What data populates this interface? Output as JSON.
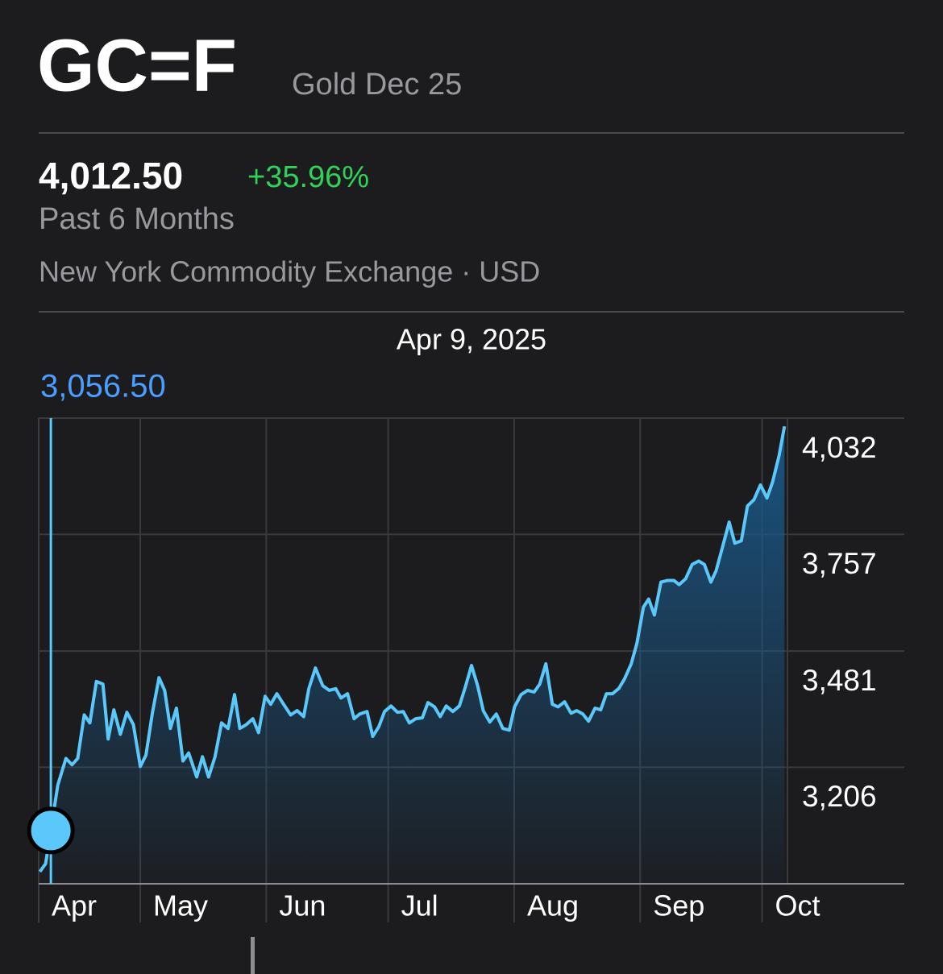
{
  "symbol": "GC=F",
  "name": "Gold Dec 25",
  "price": "4,012.50",
  "change": "+35.96%",
  "period": "Past 6 Months",
  "exchange": "New York Commodity Exchange · USD",
  "chart_data": {
    "type": "line",
    "x": [
      5.3,
      6.7,
      8,
      9.7,
      11.7,
      13.2,
      14.6,
      16.2,
      17.6,
      19.2,
      20.8,
      22.1,
      23.5,
      25.1,
      26.7,
      28.3,
      30.0,
      31.4,
      33.0,
      34.6,
      36.0,
      37.4,
      38.9,
      40.5,
      41.9,
      43.9,
      45.3,
      46.8,
      48.4,
      50.0,
      51.6,
      53.2,
      54.5,
      56.1,
      57.7,
      59.1,
      60.7,
      62.1,
      63.6,
      65.4,
      67.0,
      68.6,
      70.2,
      71.5,
      73.1,
      74.9,
      76.5,
      78.1,
      79.4,
      81.0,
      82.6,
      84.0,
      85.8,
      87.2,
      88.7,
      90.1,
      91.7,
      93.3,
      94.7,
      96.2,
      97.8,
      99.4,
      100.8,
      102.4,
      103.8,
      105.3,
      106.9,
      108.5,
      109.9,
      111.5,
      113.0,
      114.4,
      116.0,
      117.6,
      119.2,
      120.8,
      122.1,
      123.7,
      125.3,
      126.9,
      128.3,
      129.8,
      131.4,
      132.8,
      134.4,
      136.0,
      137.4,
      138.9,
      140.3,
      141.9,
      143.3,
      144.7,
      146.2,
      147.8,
      149.2,
      150.8,
      152.2,
      153.8,
      155.1,
      156.5,
      158.1,
      159.7,
      161.3,
      162.6,
      164.2,
      165.8,
      167.4,
      168.8,
      170.4,
      171.7,
      173.3,
      174.9,
      176.3,
      177.9,
      179.4,
      181.0,
      182.6,
      184.2,
      185.6,
      187.2,
      188.5
    ],
    "series": [
      {
        "color": "#5ac8fa",
        "values": [
          2959,
          2978,
          3056.5,
          3164,
          3227,
          3212,
          3227,
          3330,
          3311,
          3409,
          3403,
          3273,
          3342,
          3284,
          3336,
          3307,
          3208,
          3235,
          3336,
          3418,
          3388,
          3298,
          3346,
          3221,
          3240,
          3183,
          3231,
          3183,
          3231,
          3311,
          3298,
          3378,
          3298,
          3307,
          3321,
          3288,
          3374,
          3355,
          3380,
          3353,
          3330,
          3340,
          3326,
          3393,
          3441,
          3399,
          3388,
          3392,
          3370,
          3380,
          3321,
          3332,
          3338,
          3279,
          3302,
          3338,
          3351,
          3336,
          3338,
          3311,
          3321,
          3323,
          3359,
          3349,
          3326,
          3351,
          3338,
          3351,
          3393,
          3447,
          3399,
          3340,
          3313,
          3332,
          3298,
          3294,
          3349,
          3378,
          3388,
          3384,
          3403,
          3451,
          3355,
          3349,
          3361,
          3334,
          3340,
          3332,
          3315,
          3346,
          3342,
          3380,
          3380,
          3393,
          3416,
          3451,
          3499,
          3585,
          3604,
          3566,
          3644,
          3648,
          3648,
          3638,
          3652,
          3686,
          3694,
          3686,
          3644,
          3671,
          3728,
          3786,
          3736,
          3742,
          3824,
          3839,
          3874,
          3843,
          3881,
          3944,
          4012.5
        ]
      }
    ],
    "xlim": [
      5,
      218
    ],
    "xticks": [
      {
        "value": 5,
        "label": "Apr"
      },
      {
        "value": 30,
        "label": "May"
      },
      {
        "value": 61,
        "label": "Jun"
      },
      {
        "value": 91,
        "label": "Jul"
      },
      {
        "value": 122,
        "label": "Aug"
      },
      {
        "value": 153,
        "label": "Sep"
      },
      {
        "value": 183,
        "label": "Oct"
      }
    ],
    "ylim": [
      2930.5,
      4032
    ],
    "yticks": [
      {
        "value": 4032,
        "label": "4,032"
      },
      {
        "value": 3757,
        "label": "3,757"
      },
      {
        "value": 3481,
        "label": "3,481"
      },
      {
        "value": 3206,
        "label": "3,206"
      }
    ],
    "grid": true,
    "selected": {
      "date": "Apr 9, 2025",
      "x": 8,
      "value": 3056.5,
      "value_label": "3,056.50",
      "color": "#5ac8fa"
    }
  }
}
